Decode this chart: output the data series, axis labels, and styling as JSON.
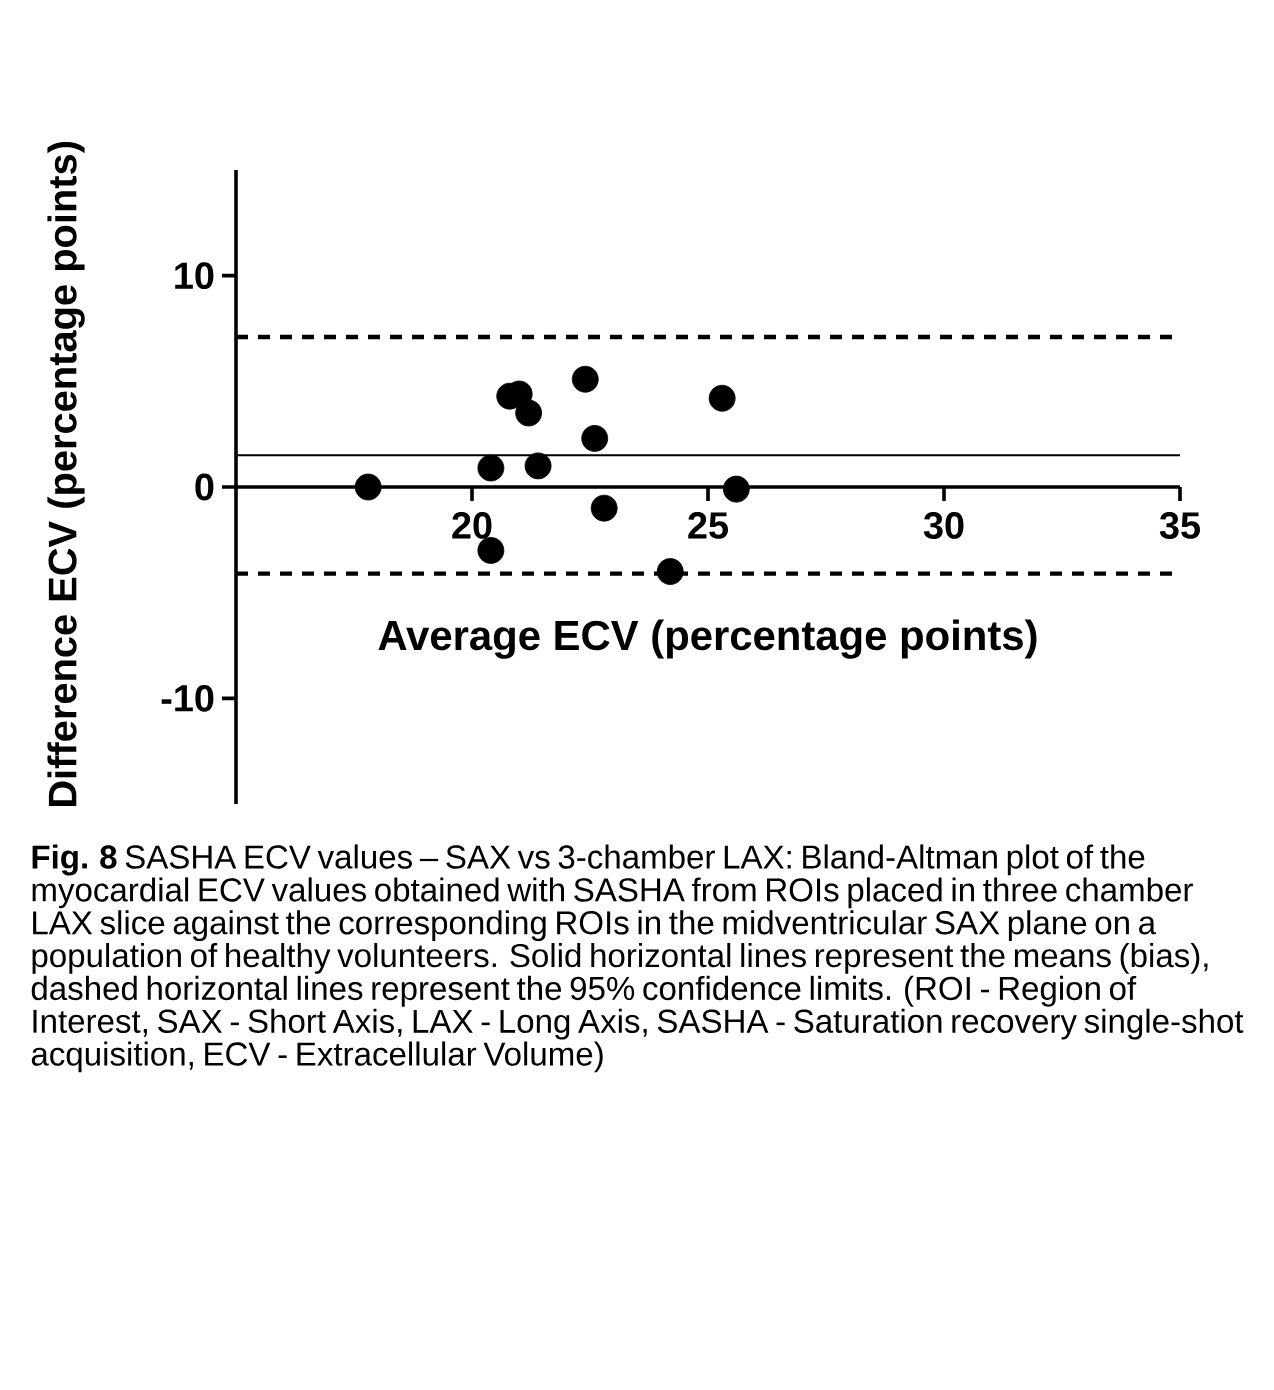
{
  "chart_data": {
    "type": "scatter",
    "xlabel": "Average ECV (percentage points)",
    "ylabel": "Difference ECV (percentage points)",
    "x": [
      17.8,
      20.4,
      20.4,
      20.8,
      21.0,
      21.2,
      21.4,
      22.4,
      22.6,
      22.8,
      24.2,
      25.3,
      25.6
    ],
    "series": [
      {
        "color": "#000000",
        "values": [
          0,
          0.9,
          -3.0,
          4.3,
          4.4,
          3.5,
          1.0,
          5.1,
          2.3,
          -1.0,
          -4.0,
          4.2,
          -0.1
        ]
      }
    ],
    "marker": "circle",
    "xlim": [
      15,
      35
    ],
    "ylim": [
      -15,
      15
    ],
    "xticks": [
      20,
      25,
      30,
      35
    ],
    "yticks": [
      -10,
      0,
      10
    ],
    "ref_lines": [
      {
        "axis": "y",
        "value": 1.5,
        "line_style": "solid"
      },
      {
        "axis": "y",
        "value": 7.1,
        "line_style": "dashed"
      },
      {
        "axis": "y",
        "value": -4.1,
        "line_style": "dashed"
      }
    ],
    "annotations": [
      "**Fig. 8** SASHA ECV values – SAX vs 3-chamber LAX: Bland-Altman plot of the myocardial ECV values obtained with SASHA from ROIs placed in three chamber LAX slice against the corresponding ROIs in the midventricular SAX plane on a population of healthy volunteers. Solid horizontal lines represent the means (bias), dashed horizontal lines represent the 95% confidence limits. (ROI - Region of Interest, SAX - Short Axis, LAX - Long Axis, SASHA - Saturation recovery single-shot acquisition, ECV - Extracellular Volume)"
    ]
  }
}
